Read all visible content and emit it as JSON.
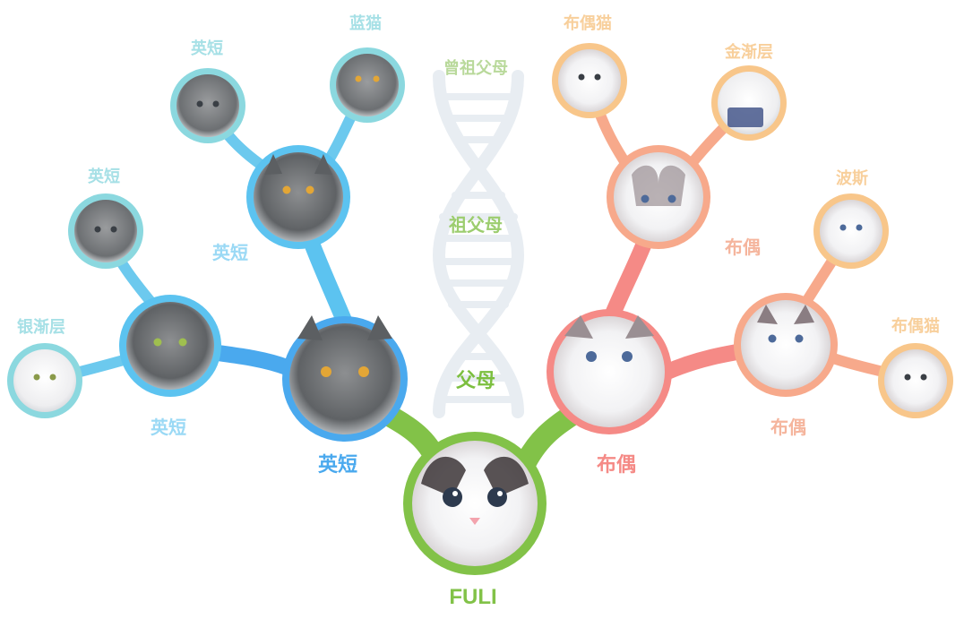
{
  "colors": {
    "left_deep": "#4aa9ee",
    "left_mid": "#5cc3f0",
    "left_outer": "#8bd8df",
    "right_deep": "#f58a86",
    "right_mid": "#f7a98b",
    "right_outer": "#f8c68a",
    "center": "#82c248",
    "helix": "#e8edf2"
  },
  "helix_labels": {
    "great_grandparents": "曾祖父母",
    "grandparents": "祖父母",
    "parents": "父母"
  },
  "root": {
    "label": "FULI",
    "image": "ragdoll-kitten-face-photo"
  },
  "father": {
    "label": "英短",
    "image": "gray-british-shorthair-photo",
    "left_parent": {
      "label": "英短",
      "image": "gray-british-shorthair-photo",
      "outer_left": {
        "label": "银渐层",
        "image": "silver-shaded-cat-photo"
      },
      "outer_right": {
        "label": "英短",
        "image": "gray-british-kitten-photo"
      }
    },
    "right_parent": {
      "label": "英短",
      "image": "gray-british-shorthair-photo",
      "outer_left": {
        "label": "英短",
        "image": "gray-british-kitten-photo"
      },
      "outer_right": {
        "label": "蓝猫",
        "image": "blue-cat-photo"
      }
    }
  },
  "mother": {
    "label": "布偶",
    "image": "ragdoll-cat-photo",
    "left_parent": {
      "label": "布偶",
      "image": "ragdoll-cat-photo",
      "outer_left": {
        "label": "布偶猫",
        "image": "ragdoll-kitten-photo"
      },
      "outer_right": {
        "label": "金渐层",
        "image": "golden-shaded-cat-photo"
      }
    },
    "right_parent": {
      "label": "布偶",
      "image": "ragdoll-cat-photo",
      "outer_left": {
        "label": "波斯",
        "image": "persian-cat-photo"
      },
      "outer_right": {
        "label": "布偶猫",
        "image": "ragdoll-kitten-photo"
      }
    }
  }
}
